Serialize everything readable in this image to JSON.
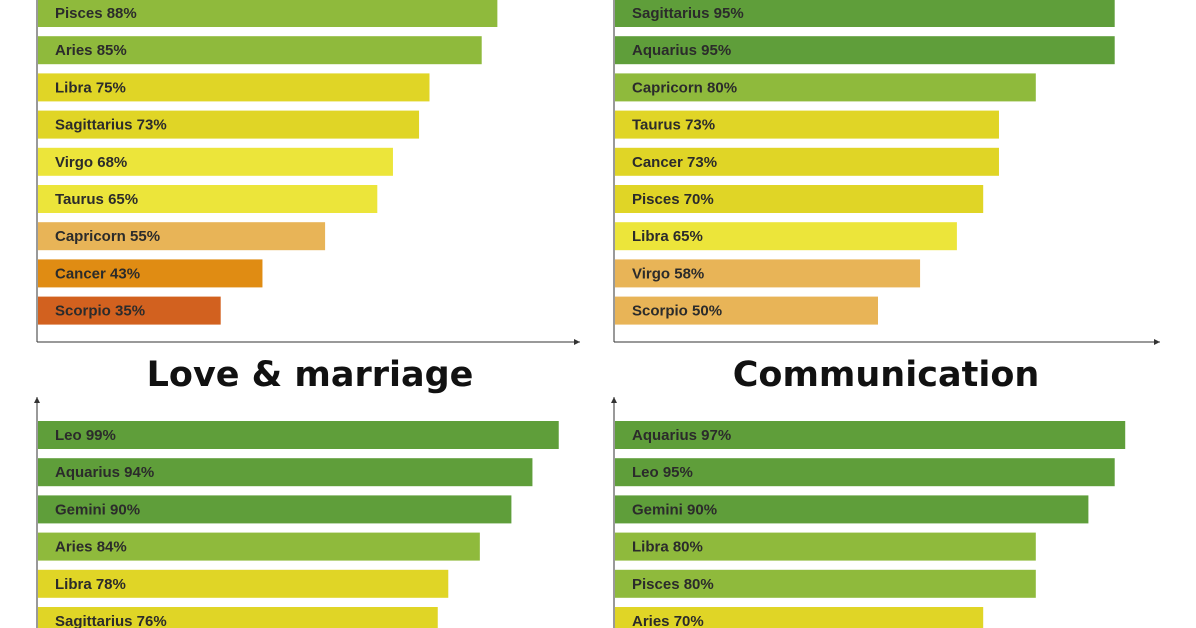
{
  "titles": {
    "love": "Love & marriage",
    "communication": "Communication"
  },
  "colors": {
    "dark_green": "#5f9e3a",
    "light_green": "#8fba3c",
    "yellow": "#e0d526",
    "light_yellow": "#ece53a",
    "peach": "#e8b457",
    "orange": "#e08c13",
    "dark_orange": "#d2611f"
  },
  "chart_data": [
    {
      "id": "top-left",
      "type": "bar",
      "orientation": "horizontal",
      "title": "",
      "xlim": [
        0,
        100
      ],
      "bars": [
        {
          "label": "Pisces 88%",
          "value": 88,
          "color": "#8fba3c"
        },
        {
          "label": "Aries 85%",
          "value": 85,
          "color": "#8fba3c"
        },
        {
          "label": "Libra 75%",
          "value": 75,
          "color": "#e0d526"
        },
        {
          "label": "Sagittarius 73%",
          "value": 73,
          "color": "#e0d526"
        },
        {
          "label": "Virgo 68%",
          "value": 68,
          "color": "#ece53a"
        },
        {
          "label": "Taurus 65%",
          "value": 65,
          "color": "#ece53a"
        },
        {
          "label": "Capricorn 55%",
          "value": 55,
          "color": "#e8b457"
        },
        {
          "label": "Cancer 43%",
          "value": 43,
          "color": "#e08c13"
        },
        {
          "label": "Scorpio 35%",
          "value": 35,
          "color": "#d2611f"
        }
      ]
    },
    {
      "id": "top-right",
      "type": "bar",
      "orientation": "horizontal",
      "title": "",
      "xlim": [
        0,
        100
      ],
      "bars": [
        {
          "label": "Sagittarius 95%",
          "value": 95,
          "color": "#5f9e3a"
        },
        {
          "label": "Aquarius 95%",
          "value": 95,
          "color": "#5f9e3a"
        },
        {
          "label": "Capricorn 80%",
          "value": 80,
          "color": "#8fba3c"
        },
        {
          "label": "Taurus 73%",
          "value": 73,
          "color": "#e0d526"
        },
        {
          "label": "Cancer 73%",
          "value": 73,
          "color": "#e0d526"
        },
        {
          "label": "Pisces 70%",
          "value": 70,
          "color": "#e0d526"
        },
        {
          "label": "Libra 65%",
          "value": 65,
          "color": "#ece53a"
        },
        {
          "label": "Virgo 58%",
          "value": 58,
          "color": "#e8b457"
        },
        {
          "label": "Scorpio 50%",
          "value": 50,
          "color": "#e8b457"
        }
      ]
    },
    {
      "id": "bottom-left",
      "type": "bar",
      "orientation": "horizontal",
      "title": "Love & marriage",
      "xlim": [
        0,
        100
      ],
      "bars": [
        {
          "label": "Leo 99%",
          "value": 99,
          "color": "#5f9e3a"
        },
        {
          "label": "Aquarius 94%",
          "value": 94,
          "color": "#5f9e3a"
        },
        {
          "label": "Gemini 90%",
          "value": 90,
          "color": "#5f9e3a"
        },
        {
          "label": "Aries 84%",
          "value": 84,
          "color": "#8fba3c"
        },
        {
          "label": "Libra 78%",
          "value": 78,
          "color": "#e0d526"
        },
        {
          "label": "Sagittarius 76%",
          "value": 76,
          "color": "#e0d526"
        }
      ]
    },
    {
      "id": "bottom-right",
      "type": "bar",
      "orientation": "horizontal",
      "title": "Communication",
      "xlim": [
        0,
        100
      ],
      "bars": [
        {
          "label": "Aquarius 97%",
          "value": 97,
          "color": "#5f9e3a"
        },
        {
          "label": "Leo 95%",
          "value": 95,
          "color": "#5f9e3a"
        },
        {
          "label": "Gemini 90%",
          "value": 90,
          "color": "#5f9e3a"
        },
        {
          "label": "Libra 80%",
          "value": 80,
          "color": "#8fba3c"
        },
        {
          "label": "Pisces 80%",
          "value": 80,
          "color": "#8fba3c"
        },
        {
          "label": "Aries 70%",
          "value": 70,
          "color": "#e0d526"
        }
      ]
    }
  ]
}
